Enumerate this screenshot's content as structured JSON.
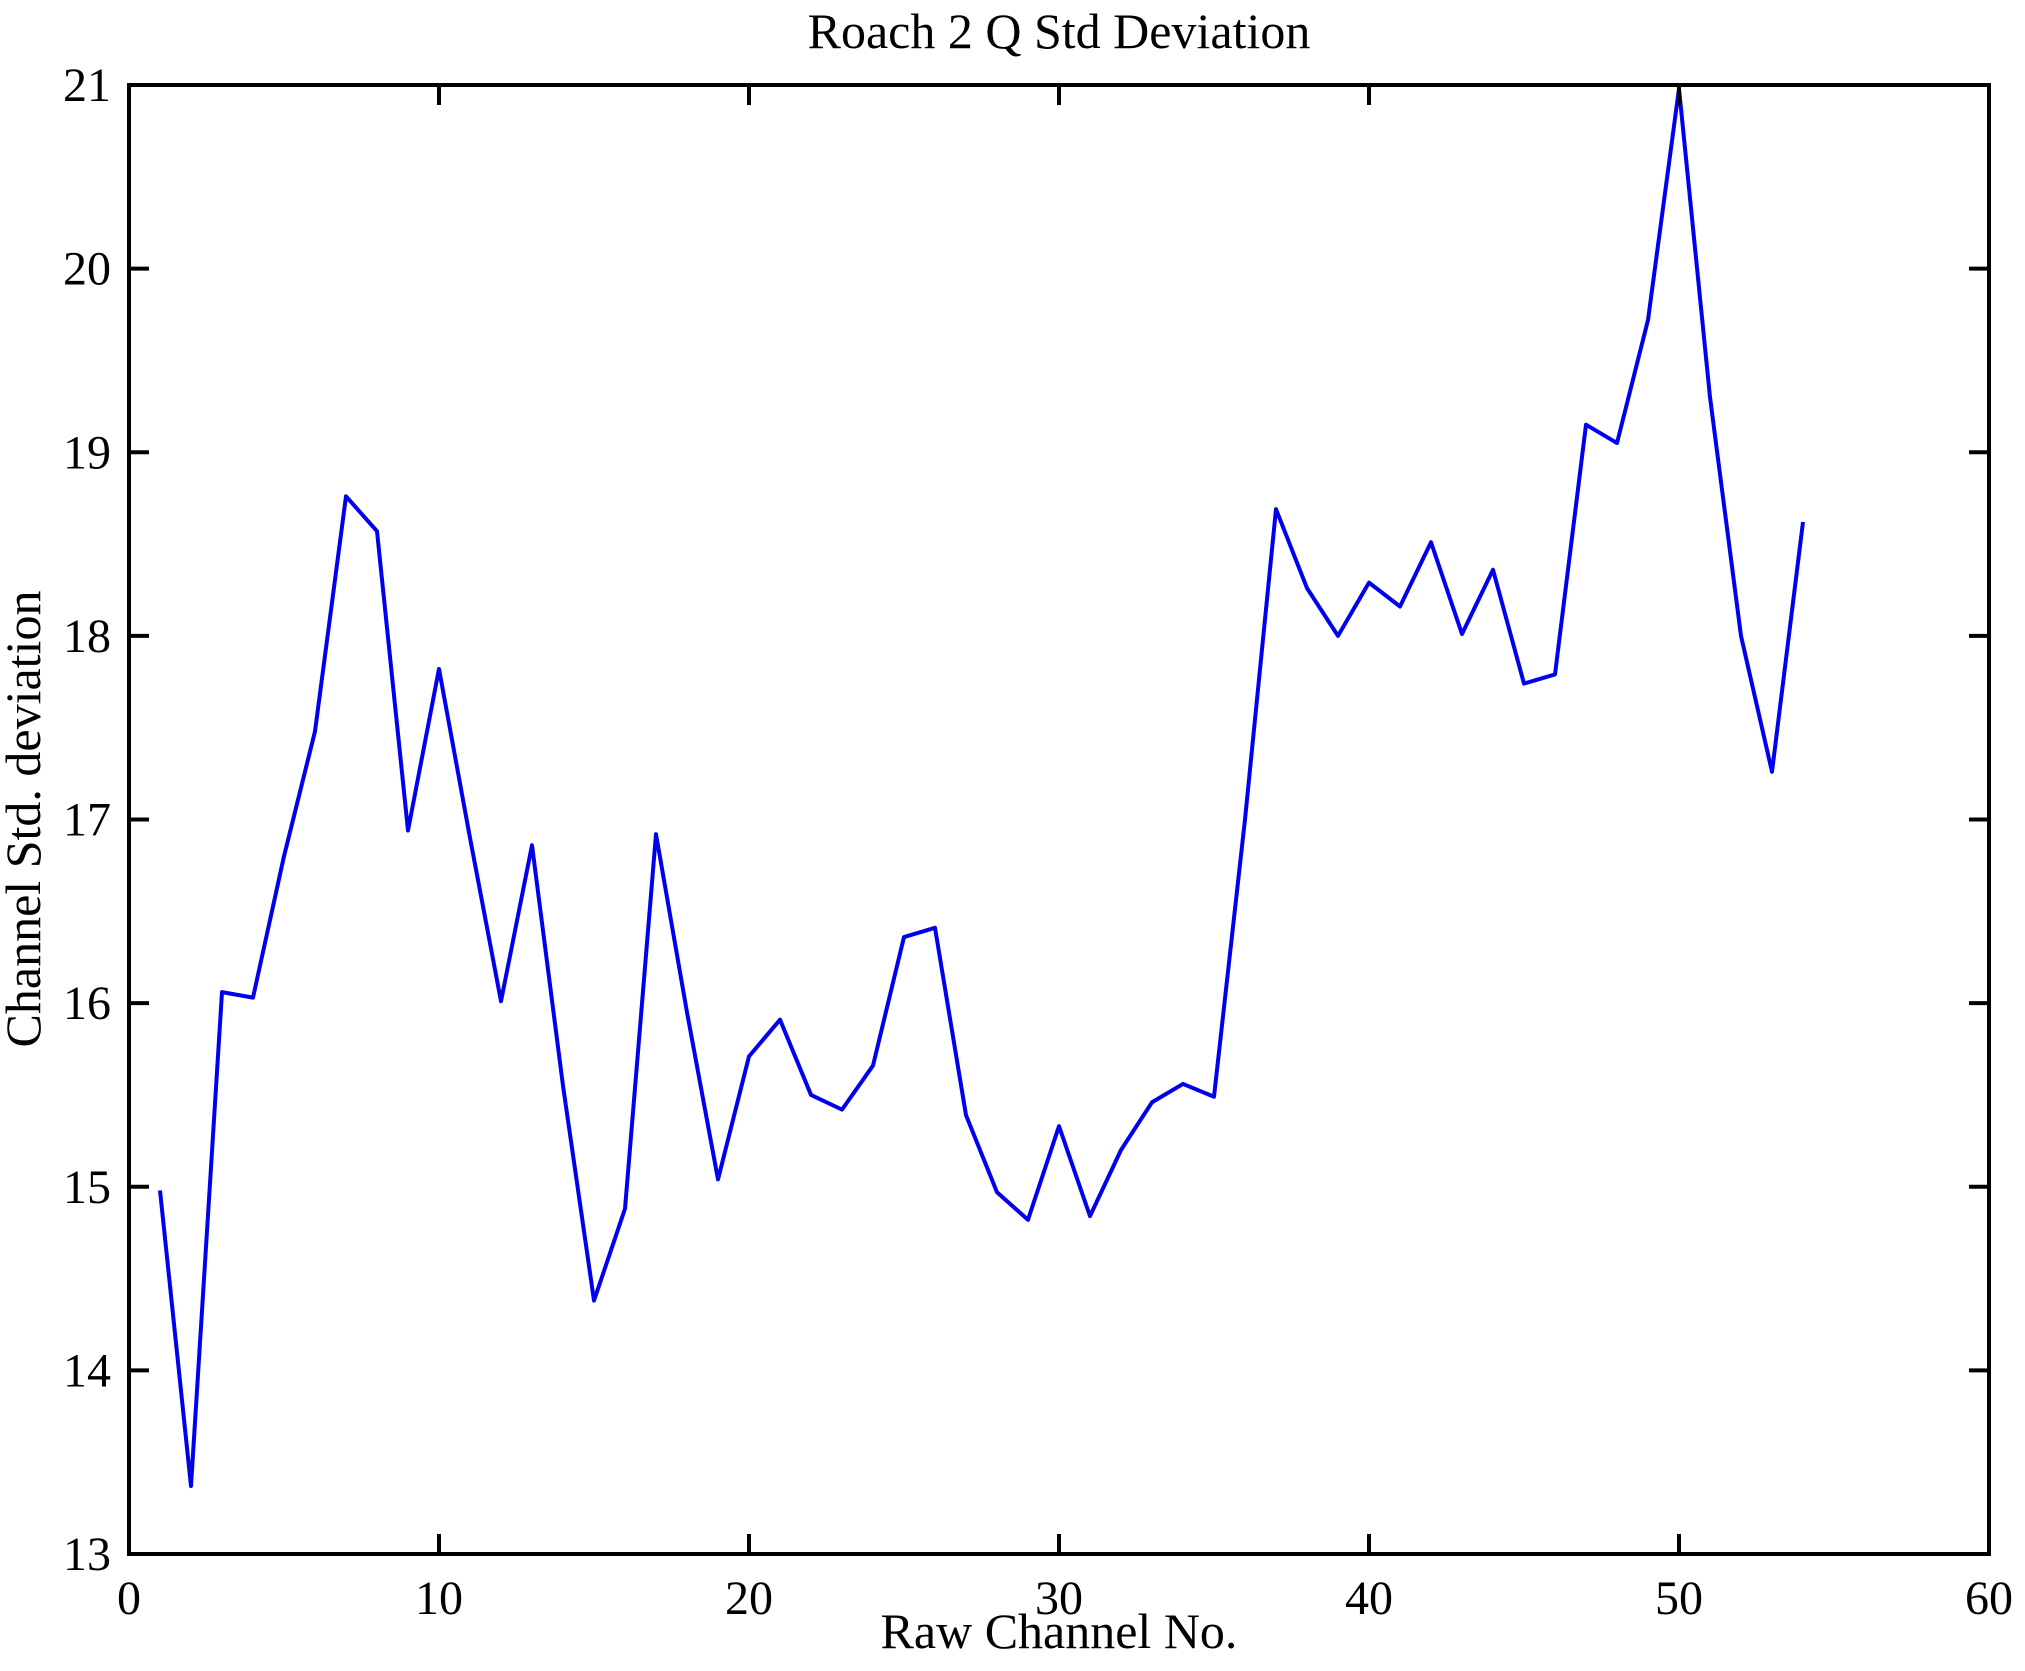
{
  "chart_data": {
    "type": "line",
    "title": "Roach 2 Q Std Deviation",
    "xlabel": "Raw Channel No.",
    "ylabel": "Channel Std. deviation",
    "xlim": [
      0,
      60
    ],
    "ylim": [
      13,
      21
    ],
    "x_ticks": [
      "0",
      "10",
      "20",
      "30",
      "40",
      "50",
      "60"
    ],
    "x_tick_values": [
      0,
      10,
      20,
      30,
      40,
      50,
      60
    ],
    "y_ticks": [
      "13",
      "14",
      "15",
      "16",
      "17",
      "18",
      "19",
      "20",
      "21"
    ],
    "y_tick_values": [
      13,
      14,
      15,
      16,
      17,
      18,
      19,
      20,
      21
    ],
    "grid": false,
    "legend": "none",
    "line_color": "#0000ee",
    "axis_color": "#000000",
    "series": [
      {
        "name": "Q std deviation",
        "x": [
          1,
          2,
          3,
          4,
          5,
          6,
          7,
          8,
          9,
          10,
          11,
          12,
          13,
          14,
          15,
          16,
          17,
          18,
          19,
          20,
          21,
          22,
          23,
          24,
          25,
          26,
          27,
          28,
          29,
          30,
          31,
          32,
          33,
          34,
          35,
          36,
          37,
          38,
          39,
          40,
          41,
          42,
          43,
          44,
          45,
          46,
          47,
          48,
          49,
          50,
          51,
          52,
          53,
          54
        ],
        "values": [
          14.98,
          13.37,
          16.06,
          16.03,
          16.8,
          17.48,
          18.76,
          18.57,
          16.94,
          17.82,
          16.9,
          16.01,
          16.86,
          15.55,
          14.38,
          14.88,
          16.92,
          15.95,
          15.04,
          15.71,
          15.91,
          15.5,
          15.42,
          15.66,
          16.36,
          16.41,
          15.39,
          14.97,
          14.82,
          15.33,
          14.84,
          15.2,
          15.46,
          15.56,
          15.49,
          17.0,
          18.69,
          18.26,
          18.0,
          18.29,
          18.16,
          18.51,
          18.01,
          18.36,
          17.74,
          17.79,
          19.15,
          19.05,
          19.72,
          20.98,
          19.3,
          18.0,
          17.26,
          18.62
        ]
      }
    ]
  }
}
